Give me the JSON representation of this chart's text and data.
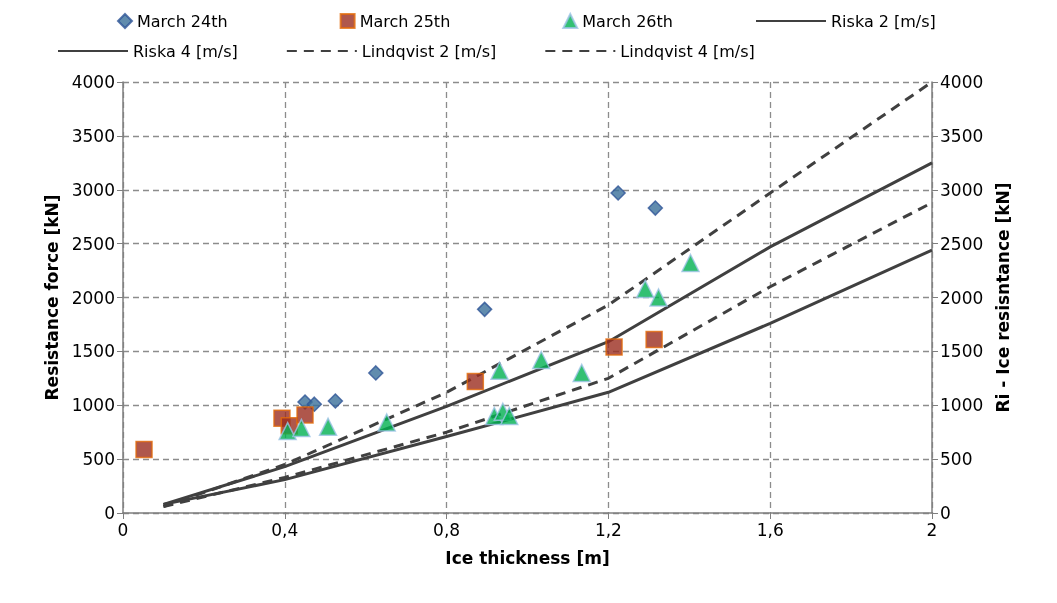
{
  "chart_data": {
    "type": "scatter",
    "xlabel": "Ice thickness [m]",
    "ylabel": "Resistance force [kN]",
    "y2label": "Ri - Ice resisntance [kN]",
    "xlim": [
      0,
      2
    ],
    "xticks": [
      0,
      {
        "value": 0.4,
        "label": "0,4"
      },
      {
        "value": 0.8,
        "label": "0,8"
      },
      {
        "value": 1.2,
        "label": "1,2"
      },
      {
        "value": 1.6,
        "label": "1,6"
      },
      2
    ],
    "ylim": [
      0,
      4000
    ],
    "yticks": [
      0,
      500,
      1000,
      1500,
      2000,
      2500,
      3000,
      3500,
      4000
    ],
    "y2lim": [
      0,
      4000
    ],
    "y2ticks": [
      0,
      500,
      1000,
      1500,
      2000,
      2500,
      3000,
      3500,
      4000
    ],
    "grid": true,
    "legend": "top",
    "series": [
      {
        "name": "March 24th",
        "marker": "diamond",
        "color": "#3a6f9a",
        "x": [
          0.45,
          0.473,
          0.525,
          0.625,
          0.894,
          1.224,
          1.316
        ],
        "values": [
          1030,
          1010,
          1040,
          1300,
          1890,
          2970,
          2830
        ]
      },
      {
        "name": "March 25th",
        "marker": "square",
        "color": "#9b2d1f",
        "x": [
          0.052,
          0.393,
          0.411,
          0.45,
          0.871,
          1.214,
          1.313
        ],
        "values": [
          590,
          880,
          810,
          910,
          1220,
          1540,
          1610
        ]
      },
      {
        "name": "March 26th",
        "marker": "triangle",
        "color": "#00b050",
        "x": [
          0.407,
          0.441,
          0.507,
          0.652,
          0.918,
          0.931,
          0.939,
          0.955,
          1.034,
          1.134,
          1.291,
          1.324,
          1.403
        ],
        "values": [
          760,
          790,
          800,
          840,
          900,
          1320,
          940,
          900,
          1420,
          1300,
          2080,
          2000,
          2320
        ]
      },
      {
        "name": "Riska 2 [m/s]",
        "type": "line",
        "line_style": "solid",
        "color": "#404040",
        "x": [
          0.1,
          0.4,
          0.8,
          1.2,
          1.6,
          2
        ],
        "values": [
          80,
          310,
          710,
          1120,
          1760,
          2440
        ]
      },
      {
        "name": "Riska 4 [m/s]",
        "type": "line",
        "line_style": "solid",
        "color": "#404040",
        "x": [
          0.1,
          0.4,
          0.8,
          1.2,
          1.6,
          2
        ],
        "values": [
          80,
          430,
          990,
          1590,
          2470,
          3250
        ]
      },
      {
        "name": "Lindqvist 2 [m/s]",
        "type": "line",
        "line_style": "dashed",
        "color": "#404040",
        "x": [
          0.1,
          0.4,
          0.8,
          1.2,
          1.6,
          2
        ],
        "values": [
          60,
          330,
          750,
          1250,
          2100,
          2880
        ]
      },
      {
        "name": "Lindqvist 4 [m/s]",
        "type": "line",
        "line_style": "dashed",
        "color": "#404040",
        "x": [
          0.1,
          0.4,
          0.8,
          1.2,
          1.6,
          2
        ],
        "values": [
          60,
          450,
          1120,
          1930,
          2970,
          4000
        ]
      }
    ]
  }
}
